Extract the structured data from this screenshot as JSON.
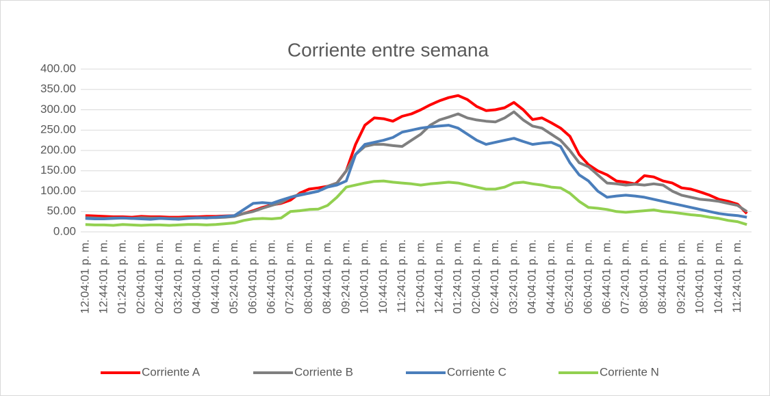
{
  "chart_data": {
    "type": "line",
    "title": "Corriente entre semana",
    "categories": [
      "12:04:01 p. m.",
      null,
      "12:44:01 p. m.",
      null,
      "01:24:01 p. m.",
      null,
      "02:04:01 p. m.",
      null,
      "02:44:01 p. m.",
      null,
      "03:24:01 p. m.",
      null,
      "04:04:01 p. m.",
      null,
      "04:44:01 p. m.",
      null,
      "05:24:01 p. m.",
      null,
      "06:04:01 p. m.",
      null,
      "06:44:01 p. m.",
      null,
      "07:24:01 p. m.",
      null,
      "08:04:01 p. m.",
      null,
      "08:44:01 p. m.",
      null,
      "09:24:01 p. m.",
      null,
      "10:04:01 p. m.",
      null,
      "10:44:01 p. m.",
      null,
      "11:24:01 p. m.",
      null,
      "12:04:01 p. m.",
      null,
      "12:44:01 p. m.",
      null,
      "01:24:01 p. m.",
      null,
      "02:04:01 p. m.",
      null,
      "02:44:01 p. m.",
      null,
      "03:24:01 p. m.",
      null,
      "04:04:01 p. m.",
      null,
      "04:44:01 p. m.",
      null,
      "05:24:01 p. m.",
      null,
      "06:04:01 p. m.",
      null,
      "06:44:01 p. m.",
      null,
      "07:24:01 p. m.",
      null,
      "08:04:01 p. m.",
      null,
      "08:44:01 p. m.",
      null,
      "09:24:01 p. m.",
      null,
      "10:04:01 p. m.",
      null,
      "10:44:01 p. m.",
      null,
      "11:24:01 p. m.",
      null
    ],
    "series": [
      {
        "name": "Corriente A",
        "color": "#ff0000",
        "values": [
          40,
          39,
          38,
          37,
          37,
          36,
          38,
          37,
          37,
          36,
          36,
          37,
          37,
          38,
          38,
          39,
          40,
          45,
          52,
          60,
          66,
          70,
          78,
          95,
          105,
          108,
          112,
          120,
          150,
          215,
          262,
          280,
          278,
          272,
          284,
          290,
          300,
          312,
          322,
          330,
          335,
          325,
          308,
          298,
          300,
          305,
          318,
          300,
          276,
          280,
          268,
          255,
          235,
          190,
          165,
          150,
          140,
          125,
          122,
          118,
          138,
          135,
          125,
          120,
          108,
          105,
          98,
          90,
          80,
          75,
          68,
          45
        ]
      },
      {
        "name": "Corriente B",
        "color": "#7f7f7f",
        "values": [
          35,
          34,
          33,
          34,
          34,
          33,
          35,
          34,
          34,
          33,
          33,
          34,
          34,
          35,
          35,
          36,
          38,
          45,
          50,
          58,
          65,
          72,
          85,
          92,
          95,
          100,
          112,
          120,
          150,
          190,
          210,
          215,
          215,
          212,
          210,
          225,
          240,
          262,
          275,
          282,
          290,
          280,
          275,
          272,
          270,
          280,
          295,
          275,
          260,
          255,
          240,
          225,
          200,
          170,
          160,
          140,
          120,
          118,
          115,
          117,
          115,
          118,
          115,
          100,
          90,
          85,
          80,
          78,
          75,
          70,
          65,
          50
        ]
      },
      {
        "name": "Corriente C",
        "color": "#4a7ebb",
        "values": [
          33,
          32,
          32,
          33,
          34,
          33,
          32,
          31,
          33,
          32,
          31,
          33,
          35,
          34,
          36,
          38,
          40,
          55,
          70,
          72,
          70,
          78,
          85,
          90,
          95,
          100,
          110,
          115,
          125,
          190,
          215,
          220,
          225,
          232,
          245,
          250,
          255,
          258,
          260,
          262,
          255,
          240,
          225,
          215,
          220,
          225,
          230,
          222,
          215,
          218,
          220,
          210,
          170,
          140,
          125,
          100,
          85,
          88,
          90,
          88,
          85,
          80,
          75,
          70,
          65,
          60,
          55,
          50,
          45,
          42,
          40,
          36
        ]
      },
      {
        "name": "Corriente N",
        "color": "#92d050",
        "values": [
          18,
          17,
          17,
          16,
          18,
          17,
          16,
          17,
          17,
          16,
          17,
          18,
          18,
          17,
          18,
          20,
          22,
          28,
          32,
          33,
          32,
          34,
          50,
          52,
          55,
          56,
          65,
          85,
          110,
          115,
          120,
          124,
          125,
          122,
          120,
          118,
          115,
          118,
          120,
          122,
          120,
          115,
          110,
          105,
          105,
          110,
          120,
          122,
          118,
          115,
          110,
          108,
          95,
          75,
          60,
          58,
          55,
          50,
          48,
          50,
          52,
          54,
          50,
          48,
          45,
          42,
          40,
          36,
          33,
          28,
          25,
          18
        ]
      }
    ],
    "ylim": [
      0,
      400
    ],
    "yticks": [
      {
        "value": 0,
        "label": "0.00"
      },
      {
        "value": 50,
        "label": "50.00"
      },
      {
        "value": 100,
        "label": "100.00"
      },
      {
        "value": 150,
        "label": "150.00"
      },
      {
        "value": 200,
        "label": "200.00"
      },
      {
        "value": 250,
        "label": "250.00"
      },
      {
        "value": 300,
        "label": "300.00"
      },
      {
        "value": 350,
        "label": "350.00"
      },
      {
        "value": 400,
        "label": "400.00"
      }
    ],
    "grid": true,
    "legend": "bottom"
  }
}
